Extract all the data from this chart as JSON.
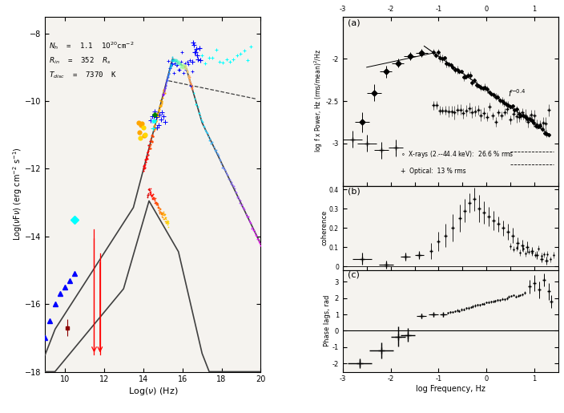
{
  "left": {
    "xlim": [
      9,
      20
    ],
    "ylim": [
      -18,
      -7.5
    ],
    "xlabel": "Log(\\u03bd) (Hz)",
    "ylabel": "Log(\\u03bdF\\u03bd) (erg cm\\u207b\\u00b2 s\\u207b\\u00b9)",
    "xticks": [
      10,
      12,
      14,
      16,
      18,
      20
    ],
    "yticks": [
      -8,
      -10,
      -12,
      -14,
      -16,
      -18
    ],
    "annotation_lines": [
      "N_h  =  1.1  10^20 cm^-2",
      "R_in  =  352  R_s",
      "T_disc  =  7370  K"
    ]
  },
  "right_a": {
    "xlim": [
      -3,
      1.5
    ],
    "ylim": [
      -3.5,
      -1.5
    ],
    "yticks": [
      -3.0,
      -2.5,
      -2.0
    ],
    "ytick_labels": [
      "-3",
      "-2.5",
      "-2"
    ],
    "xticks": [
      -3,
      -2,
      -1,
      0,
      1
    ],
    "ylabel": "log f x Power, Hz (rms/mean)^2/Hz"
  },
  "right_b": {
    "xlim": [
      -3,
      1.5
    ],
    "ylim": [
      -0.02,
      0.42
    ],
    "yticks": [
      0.0,
      0.1,
      0.2,
      0.3,
      0.4
    ],
    "ylabel": "coherence"
  },
  "right_c": {
    "xlim": [
      -3,
      1.5
    ],
    "ylim": [
      -2.5,
      3.7
    ],
    "yticks": [
      -2,
      -1,
      0,
      1,
      2,
      3
    ],
    "xticks": [
      -3,
      -2,
      -1,
      0,
      1
    ],
    "ylabel": "Phase lags, rad",
    "xlabel": "log Frequency, Hz"
  },
  "bg_color": "#f0ede8"
}
